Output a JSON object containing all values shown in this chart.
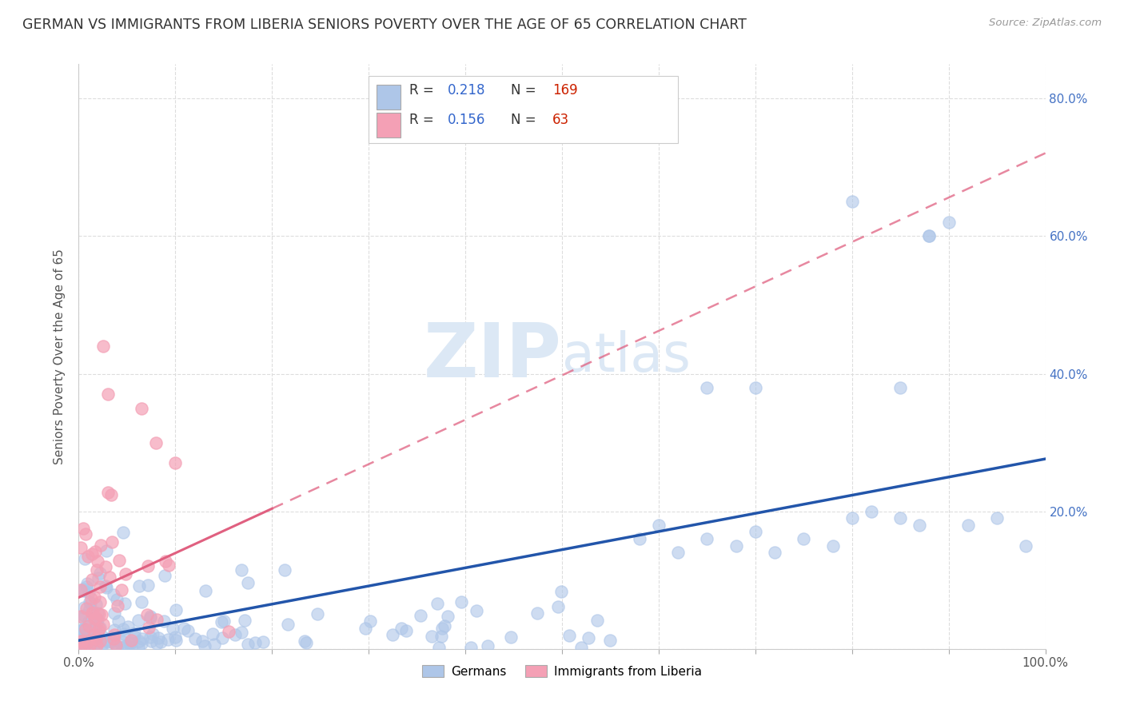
{
  "title": "GERMAN VS IMMIGRANTS FROM LIBERIA SENIORS POVERTY OVER THE AGE OF 65 CORRELATION CHART",
  "source": "Source: ZipAtlas.com",
  "ylabel": "Seniors Poverty Over the Age of 65",
  "xlim": [
    0.0,
    1.0
  ],
  "ylim": [
    0.0,
    0.85
  ],
  "x_ticks": [
    0.0,
    0.1,
    0.2,
    0.3,
    0.4,
    0.5,
    0.6,
    0.7,
    0.8,
    0.9,
    1.0
  ],
  "x_tick_labels": [
    "0.0%",
    "",
    "",
    "",
    "",
    "",
    "",
    "",
    "",
    "",
    "100.0%"
  ],
  "y_ticks": [
    0.0,
    0.2,
    0.4,
    0.6,
    0.8
  ],
  "y_tick_labels_right": [
    "",
    "20.0%",
    "40.0%",
    "60.0%",
    "80.0%"
  ],
  "background_color": "#ffffff",
  "grid_color": "#dddddd",
  "title_fontsize": 12.5,
  "axis_label_fontsize": 11,
  "tick_fontsize": 11,
  "right_tick_color": "#4472c4",
  "blue_scatter_color": "#aec6e8",
  "pink_scatter_color": "#f4a0b5",
  "blue_line_color": "#2255aa",
  "pink_line_color": "#e06080",
  "pink_dashed_color": "#e8a0b8",
  "watermark_zip": "ZIP",
  "watermark_atlas": "atlas",
  "watermark_color": "#dce8f5",
  "R_blue": 0.218,
  "N_blue": 169,
  "R_pink": 0.156,
  "N_pink": 63,
  "legend_R_color": "#3366cc",
  "legend_N_color": "#cc2200"
}
